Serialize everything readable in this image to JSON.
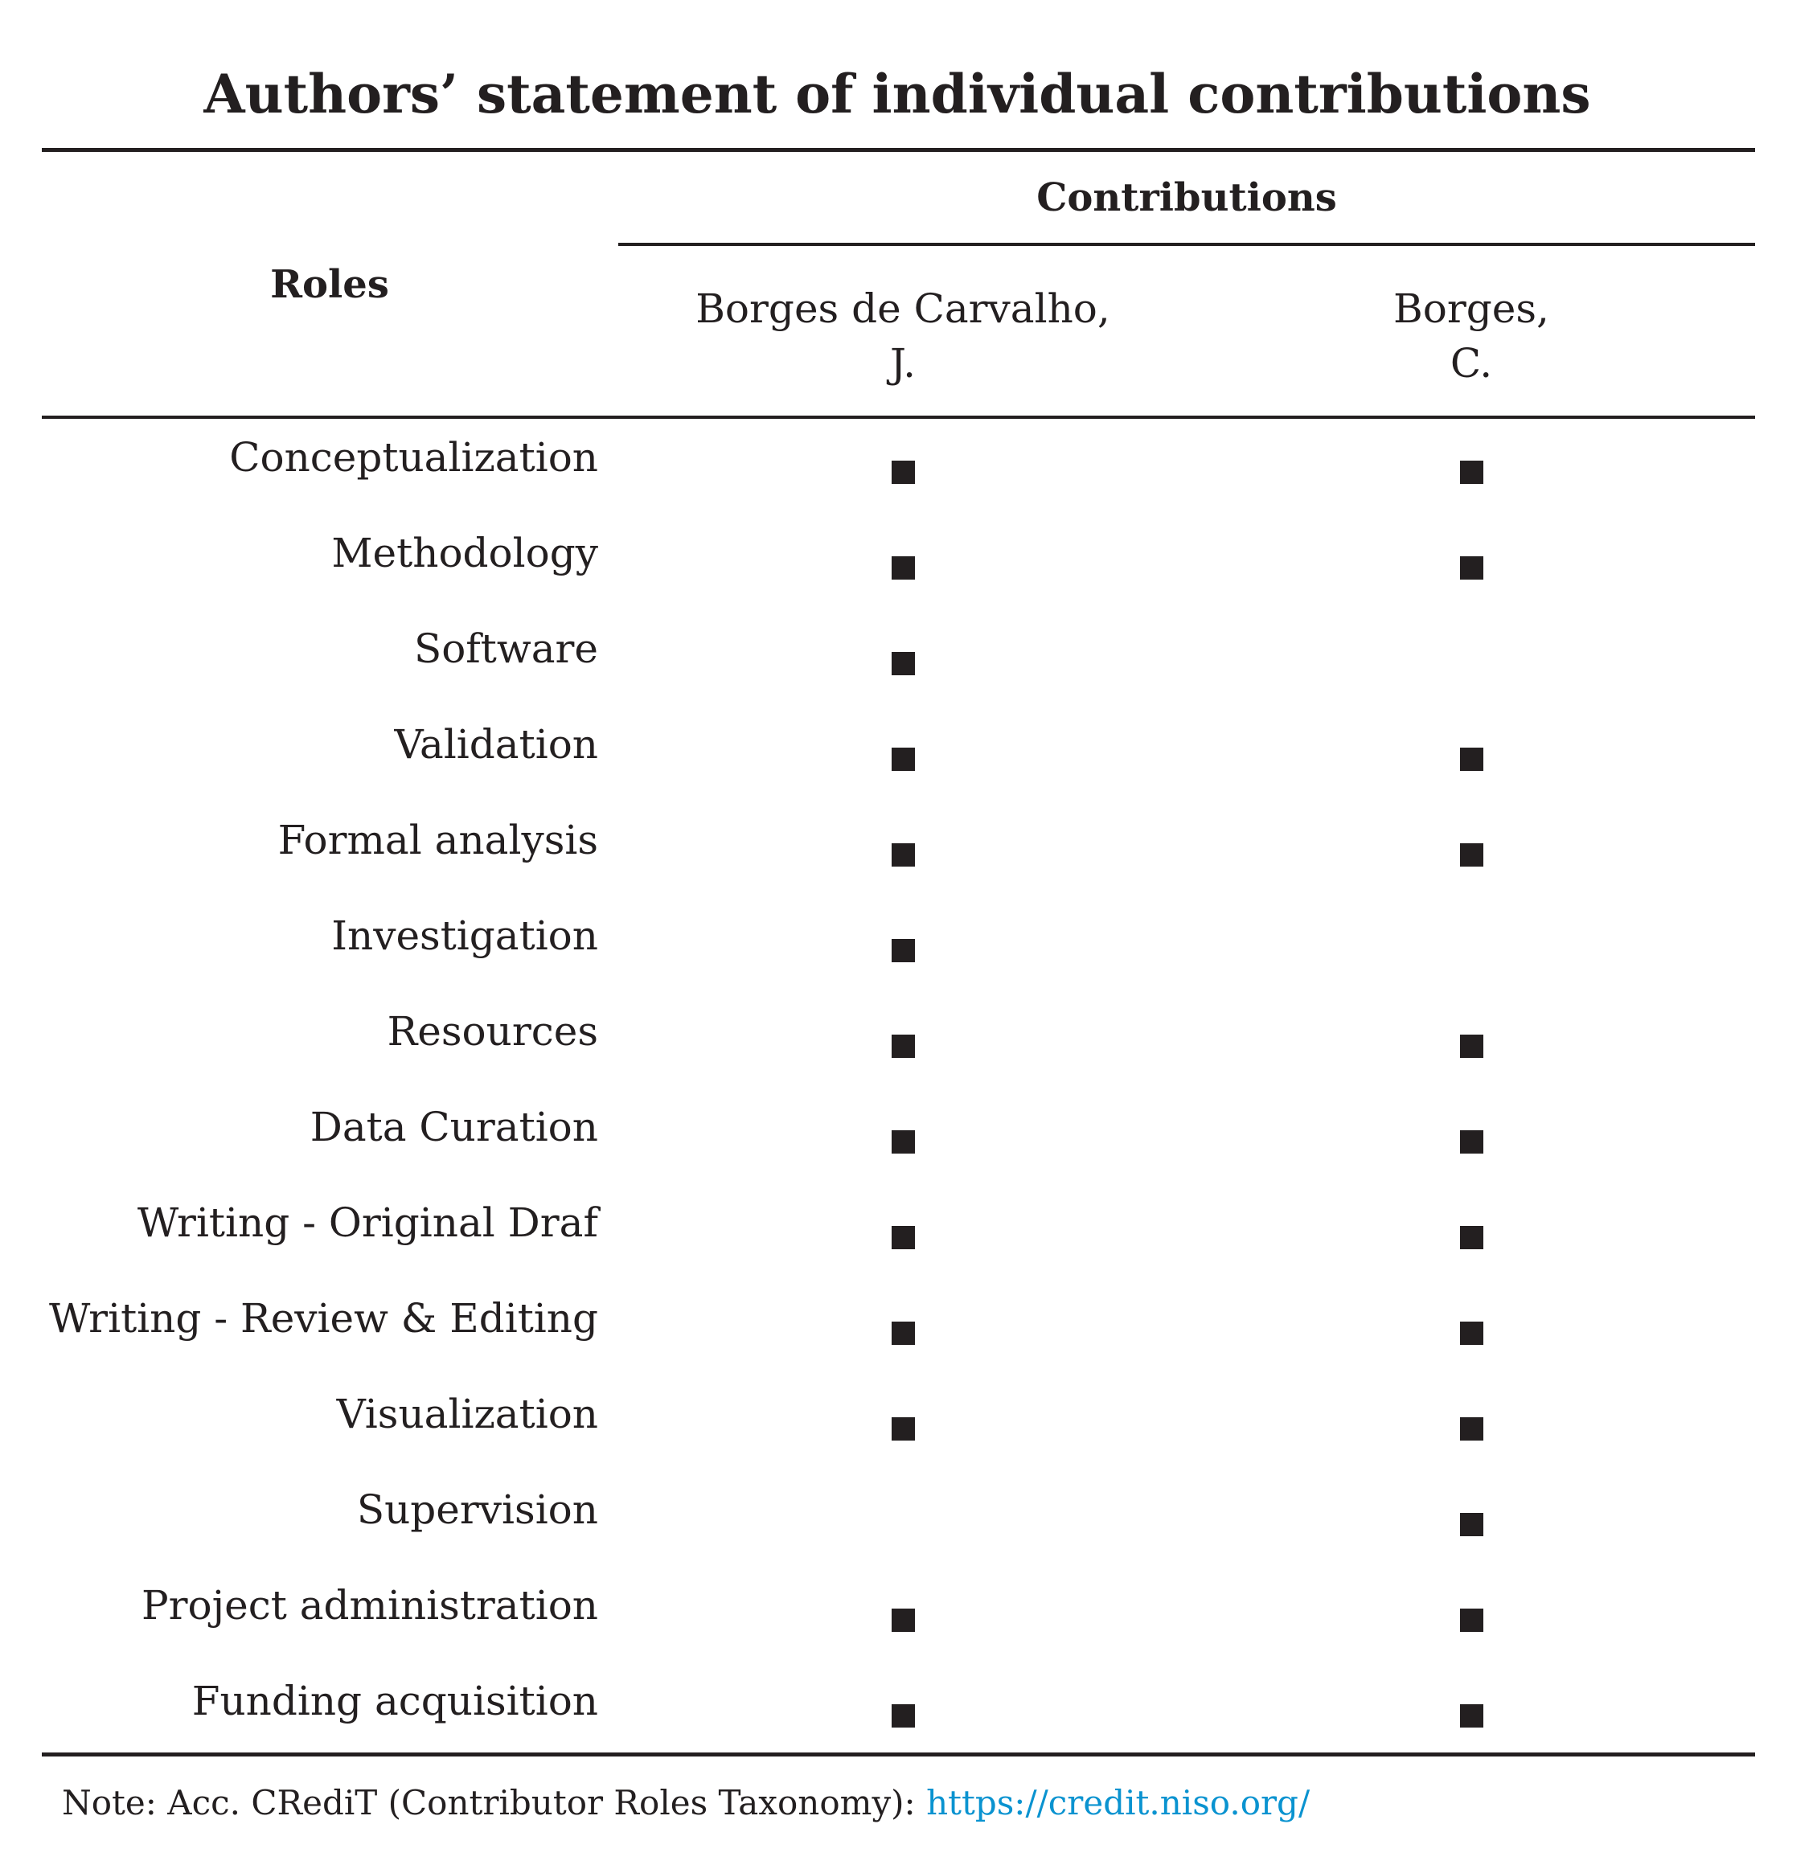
{
  "title": "Authors’ statement of individual contributions",
  "header": {
    "roles": "Roles",
    "contributions": "Contributions",
    "authors": [
      {
        "line1": "Borges de Carvalho,",
        "line2": "J."
      },
      {
        "line1": "Borges,",
        "line2": "C."
      }
    ]
  },
  "rows": [
    {
      "role": "Conceptualization",
      "marks": [
        true,
        true
      ]
    },
    {
      "role": "Methodology",
      "marks": [
        true,
        true
      ]
    },
    {
      "role": "Software",
      "marks": [
        true,
        false
      ]
    },
    {
      "role": "Validation",
      "marks": [
        true,
        true
      ]
    },
    {
      "role": "Formal analysis",
      "marks": [
        true,
        true
      ]
    },
    {
      "role": "Investigation",
      "marks": [
        true,
        false
      ]
    },
    {
      "role": "Resources",
      "marks": [
        true,
        true
      ]
    },
    {
      "role": "Data Curation",
      "marks": [
        true,
        true
      ]
    },
    {
      "role": "Writing - Original Draf",
      "marks": [
        true,
        true
      ]
    },
    {
      "role": "Writing - Review & Editing",
      "marks": [
        true,
        true
      ]
    },
    {
      "role": "Visualization",
      "marks": [
        true,
        true
      ]
    },
    {
      "role": "Supervision",
      "marks": [
        false,
        true
      ]
    },
    {
      "role": "Project administration",
      "marks": [
        true,
        true
      ]
    },
    {
      "role": "Funding acquisition",
      "marks": [
        true,
        true
      ]
    }
  ],
  "note": {
    "text": "Note: Acc. CRediT (Contributor Roles Taxonomy): ",
    "link": "https://credit.niso.org/",
    "link_color": "#0a93d0"
  }
}
